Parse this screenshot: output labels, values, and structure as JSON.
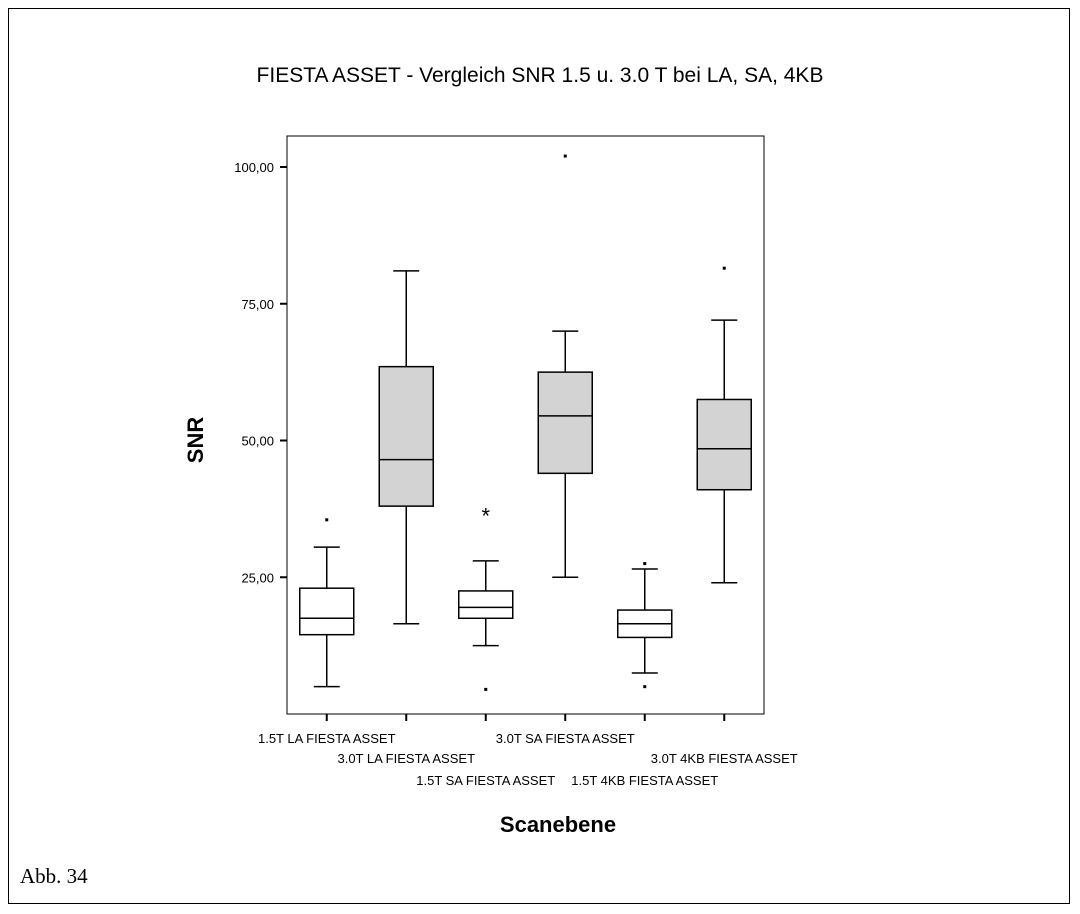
{
  "caption": "Abb. 34",
  "chart_data": {
    "type": "boxplot",
    "title": "FIESTA ASSET - Vergleich SNR 1.5 u. 3.0 T bei LA, SA, 4KB",
    "xlabel": "Scanebene",
    "ylabel": "SNR",
    "yticks": [
      "25,00",
      "50,00",
      "75,00",
      "100,00"
    ],
    "ytick_values": [
      25,
      50,
      75,
      100
    ],
    "ylim": [
      0,
      105
    ],
    "grid": false,
    "categories": [
      "1.5T LA FIESTA ASSET",
      "3.0T LA FIESTA ASSET",
      "1.5T SA FIESTA ASSET",
      "3.0T SA FIESTA ASSET",
      "1.5T 4KB FIESTA ASSET",
      "3.0T 4KB FIESTA ASSET"
    ],
    "boxes": [
      {
        "min": 5,
        "q1": 14.5,
        "median": 17.5,
        "q3": 23,
        "max": 30.5,
        "fill": "#ffffff",
        "outliers": [
          {
            "value": 35.5,
            "marker": "dot"
          }
        ]
      },
      {
        "min": 16.5,
        "q1": 38,
        "median": 46.5,
        "q3": 63.5,
        "max": 81,
        "fill": "#d3d3d3",
        "outliers": []
      },
      {
        "min": 12.5,
        "q1": 17.5,
        "median": 19.5,
        "q3": 22.5,
        "max": 28,
        "fill": "#ffffff",
        "outliers": [
          {
            "value": 37,
            "marker": "star"
          },
          {
            "value": 4.5,
            "marker": "dot"
          }
        ]
      },
      {
        "min": 25,
        "q1": 44,
        "median": 54.5,
        "q3": 62.5,
        "max": 70,
        "fill": "#d3d3d3",
        "outliers": [
          {
            "value": 102,
            "marker": "dot"
          }
        ]
      },
      {
        "min": 7.5,
        "q1": 14,
        "median": 16.5,
        "q3": 19,
        "max": 26.5,
        "fill": "#ffffff",
        "outliers": [
          {
            "value": 27.5,
            "marker": "dot"
          },
          {
            "value": 5,
            "marker": "dot"
          }
        ]
      },
      {
        "min": 24,
        "q1": 41,
        "median": 48.5,
        "q3": 57.5,
        "max": 72,
        "fill": "#d3d3d3",
        "outliers": [
          {
            "value": 81.5,
            "marker": "dot"
          }
        ]
      }
    ]
  }
}
